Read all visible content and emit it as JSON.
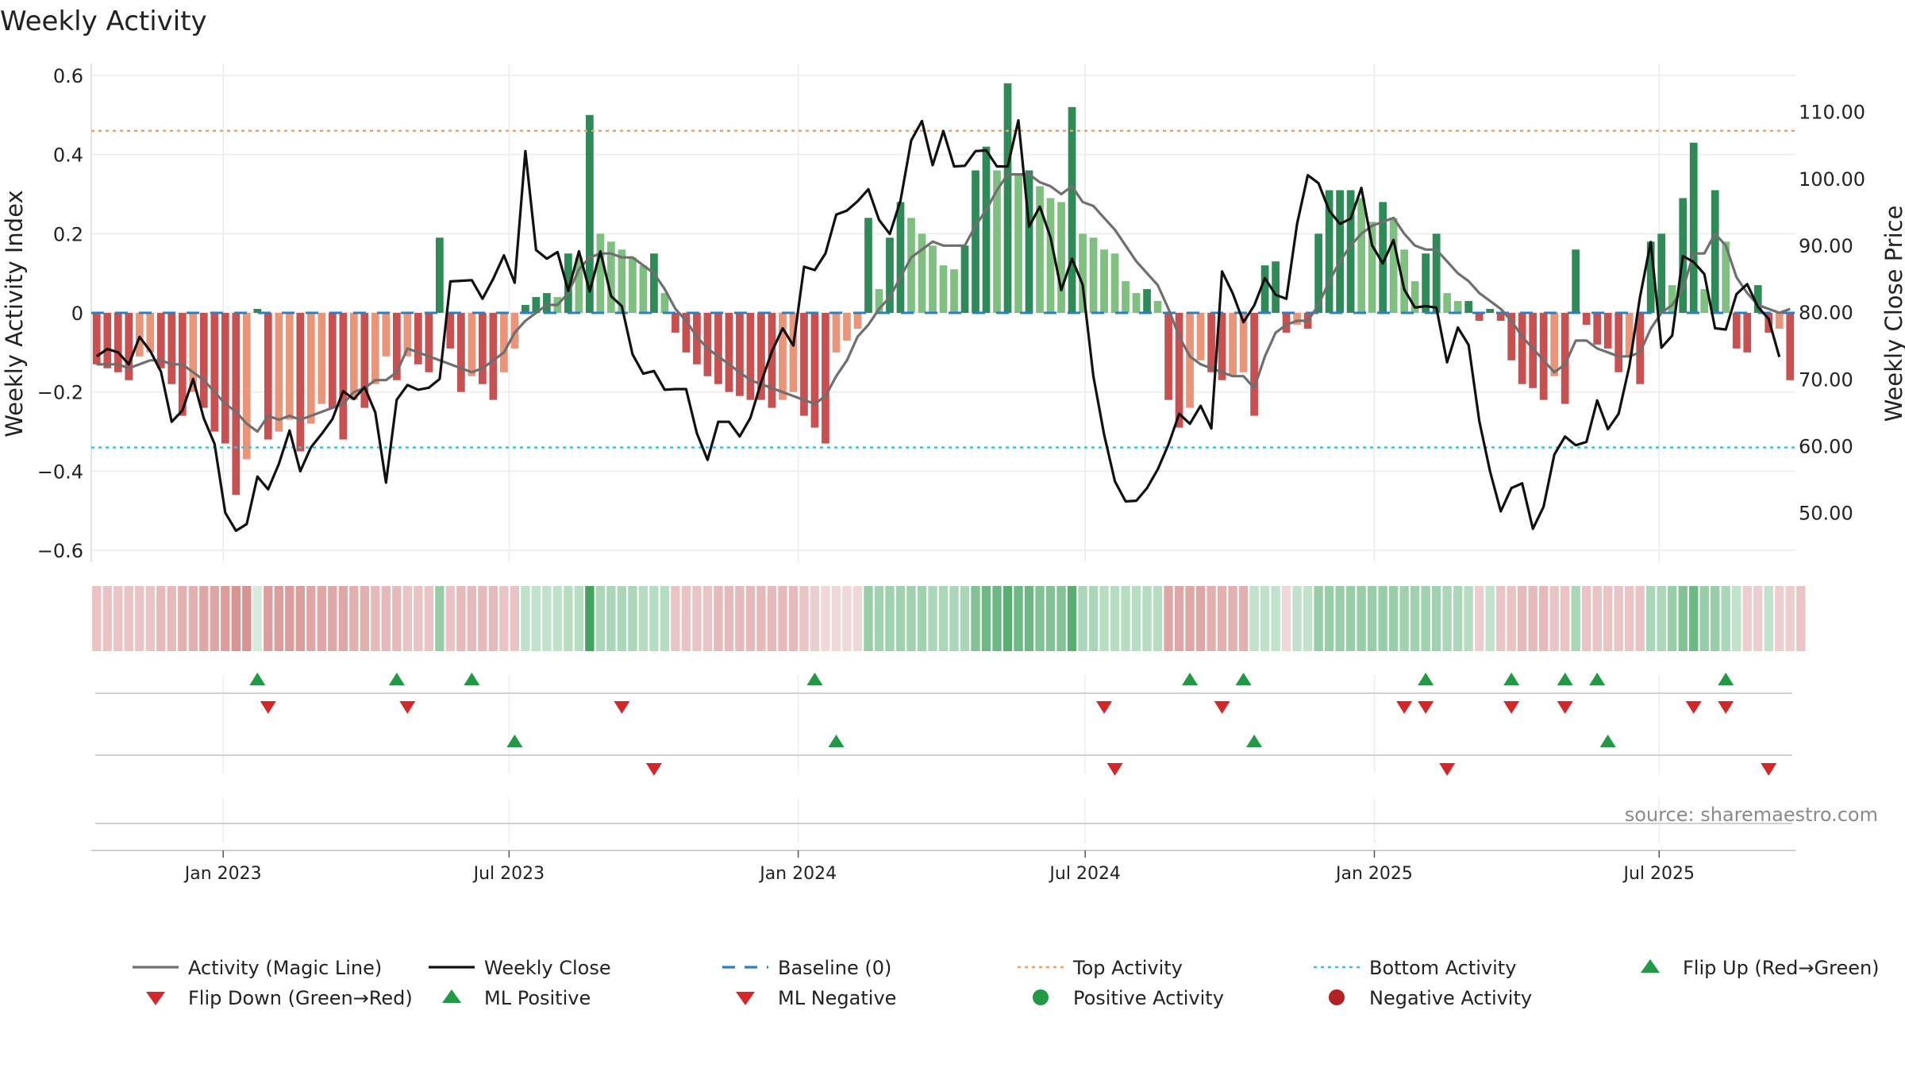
{
  "chart_data": {
    "type": "bar",
    "title": "Weekly Activity",
    "ylabel": "Weekly Activity Index",
    "y2label": "Weekly Close Price",
    "source": "source: sharemaestro.com",
    "ylim": [
      -0.63,
      0.63
    ],
    "y2lim": [
      42.6,
      117.2
    ],
    "yticks": [
      -0.6,
      -0.4,
      -0.2,
      0,
      0.2,
      0.4,
      0.6
    ],
    "ytick_labels": [
      "−0.6",
      "−0.4",
      "−0.2",
      "0",
      "0.2",
      "0.4",
      "0.6"
    ],
    "y2ticks": [
      50,
      60,
      70,
      80,
      90,
      100,
      110
    ],
    "y2tick_labels": [
      "50.00",
      "60.00",
      "70.00",
      "80.00",
      "90.00",
      "100.00",
      "110.00"
    ],
    "x_start": "2022-10-10",
    "x_weeks": 155,
    "xticks": [
      {
        "week": 12,
        "label": "Jan 2023"
      },
      {
        "week": 38,
        "label": "Jul 2023"
      },
      {
        "week": 64.3,
        "label": "Jan 2024"
      },
      {
        "week": 90.4,
        "label": "Jul 2024"
      },
      {
        "week": 116.7,
        "label": "Jan 2025"
      },
      {
        "week": 142.6,
        "label": "Jul 2025"
      }
    ],
    "top_activity": 0.46,
    "bottom_activity": -0.34,
    "baseline": 0,
    "activity": [
      -0.13,
      -0.14,
      -0.15,
      -0.17,
      -0.11,
      -0.1,
      -0.14,
      -0.18,
      -0.26,
      -0.2,
      -0.24,
      -0.3,
      -0.33,
      -0.46,
      -0.37,
      0.01,
      -0.32,
      -0.3,
      -0.27,
      -0.35,
      -0.28,
      -0.23,
      -0.24,
      -0.32,
      -0.22,
      -0.24,
      -0.18,
      -0.11,
      -0.17,
      -0.11,
      -0.13,
      -0.15,
      0.19,
      -0.09,
      -0.2,
      -0.16,
      -0.18,
      -0.22,
      -0.15,
      -0.09,
      0.02,
      0.04,
      0.05,
      0.04,
      0.15,
      0.14,
      0.5,
      0.2,
      0.18,
      0.16,
      0.14,
      0.12,
      0.15,
      0.05,
      -0.05,
      -0.1,
      -0.13,
      -0.16,
      -0.18,
      -0.2,
      -0.21,
      -0.22,
      -0.22,
      -0.24,
      -0.22,
      -0.2,
      -0.26,
      -0.29,
      -0.33,
      -0.1,
      -0.07,
      -0.04,
      0.24,
      0.06,
      0.19,
      0.28,
      0.24,
      0.2,
      0.17,
      0.12,
      0.11,
      0.17,
      0.36,
      0.42,
      0.36,
      0.58,
      0.35,
      0.36,
      0.32,
      0.29,
      0.28,
      0.52,
      0.2,
      0.19,
      0.16,
      0.15,
      0.08,
      0.05,
      0.06,
      0.03,
      -0.22,
      -0.29,
      -0.24,
      -0.12,
      -0.15,
      -0.17,
      -0.16,
      -0.15,
      -0.26,
      0.12,
      0.13,
      -0.05,
      -0.03,
      -0.04,
      0.2,
      0.31,
      0.31,
      0.31,
      0.29,
      0.23,
      0.28,
      0.24,
      0.16,
      0.08,
      0.15,
      0.2,
      0.05,
      0.03,
      0.03,
      -0.02,
      0.01,
      -0.02,
      -0.12,
      -0.18,
      -0.19,
      -0.22,
      -0.16,
      -0.23,
      0.16,
      -0.03,
      -0.08,
      -0.09,
      -0.15,
      -0.11,
      -0.18,
      0.18,
      0.2,
      0.07,
      0.29,
      0.43,
      0.06,
      0.31,
      0.18,
      -0.09,
      -0.1,
      0.07,
      -0.05,
      -0.04,
      -0.17
    ],
    "magic_line": [
      -0.13,
      -0.13,
      -0.13,
      -0.14,
      -0.13,
      -0.12,
      -0.12,
      -0.13,
      -0.13,
      -0.15,
      -0.17,
      -0.2,
      -0.23,
      -0.25,
      -0.28,
      -0.3,
      -0.26,
      -0.27,
      -0.26,
      -0.27,
      -0.26,
      -0.25,
      -0.24,
      -0.23,
      -0.2,
      -0.19,
      -0.17,
      -0.17,
      -0.15,
      -0.09,
      -0.1,
      -0.11,
      -0.12,
      -0.13,
      -0.14,
      -0.15,
      -0.14,
      -0.12,
      -0.1,
      -0.05,
      -0.02,
      0.0,
      0.02,
      0.02,
      0.05,
      0.11,
      0.14,
      0.15,
      0.15,
      0.14,
      0.14,
      0.12,
      0.1,
      0.06,
      0.01,
      -0.02,
      -0.06,
      -0.09,
      -0.11,
      -0.13,
      -0.15,
      -0.17,
      -0.18,
      -0.19,
      -0.2,
      -0.21,
      -0.22,
      -0.23,
      -0.21,
      -0.16,
      -0.12,
      -0.06,
      -0.03,
      0.01,
      0.04,
      0.09,
      0.14,
      0.16,
      0.18,
      0.17,
      0.17,
      0.17,
      0.22,
      0.26,
      0.31,
      0.35,
      0.35,
      0.35,
      0.33,
      0.32,
      0.3,
      0.32,
      0.28,
      0.27,
      0.24,
      0.21,
      0.17,
      0.13,
      0.1,
      0.07,
      0.01,
      -0.06,
      -0.11,
      -0.13,
      -0.14,
      -0.15,
      -0.16,
      -0.16,
      -0.19,
      -0.11,
      -0.05,
      -0.03,
      -0.02,
      -0.02,
      0.02,
      0.08,
      0.13,
      0.17,
      0.2,
      0.22,
      0.23,
      0.24,
      0.2,
      0.17,
      0.16,
      0.16,
      0.13,
      0.1,
      0.08,
      0.05,
      0.03,
      0.01,
      -0.02,
      -0.06,
      -0.09,
      -0.12,
      -0.15,
      -0.13,
      -0.07,
      -0.07,
      -0.09,
      -0.1,
      -0.11,
      -0.11,
      -0.1,
      -0.04,
      0.0,
      0.02,
      0.06,
      0.15,
      0.15,
      0.2,
      0.17,
      0.09,
      0.05,
      0.02,
      0.01,
      0.0,
      0.01
    ],
    "weekly_close": [
      73.4,
      74.5,
      74.0,
      72.2,
      76.3,
      74.2,
      71.1,
      63.6,
      65.3,
      70.0,
      64.1,
      60.3,
      50.0,
      47.3,
      48.3,
      55.4,
      53.5,
      57.3,
      62.3,
      56.2,
      59.8,
      61.8,
      64.0,
      68.2,
      67.0,
      68.8,
      65.0,
      54.5,
      66.9,
      69.1,
      68.4,
      68.7,
      70.0,
      84.6,
      84.7,
      84.8,
      82.0,
      85.0,
      88.5,
      84.4,
      104.1,
      89.3,
      88.0,
      89.0,
      83.2,
      89.1,
      83.1,
      89.1,
      82.4,
      80.9,
      73.7,
      70.8,
      71.2,
      68.4,
      68.5,
      68.5,
      61.9,
      57.9,
      63.6,
      63.6,
      61.4,
      64.2,
      69.5,
      74.1,
      77.6,
      75.0,
      86.8,
      86.3,
      88.8,
      94.6,
      95.2,
      96.6,
      98.4,
      93.8,
      91.7,
      96.7,
      105.7,
      108.6,
      102.0,
      107.1,
      101.8,
      101.9,
      104.1,
      104.2,
      101.8,
      101.8,
      108.7,
      92.8,
      95.8,
      91.2,
      83.3,
      88.0,
      84.1,
      70.4,
      61.7,
      54.7,
      51.7,
      51.8,
      53.7,
      56.5,
      60.2,
      64.8,
      63.3,
      66.0,
      62.6,
      86.1,
      82.8,
      78.5,
      81.0,
      85.1,
      82.6,
      82.0,
      93.2,
      100.5,
      99.3,
      95.2,
      93.2,
      94.0,
      98.6,
      90.0,
      87.3,
      90.8,
      83.4,
      80.7,
      80.9,
      80.7,
      72.5,
      77.7,
      75.1,
      63.7,
      56.2,
      50.2,
      53.7,
      54.4,
      47.6,
      50.9,
      58.7,
      61.4,
      60.1,
      60.6,
      66.8,
      62.5,
      64.8,
      71.9,
      82.3,
      90.5,
      74.7,
      76.5,
      88.4,
      87.5,
      85.7,
      77.6,
      77.4,
      82.7,
      84.2,
      80.8,
      79.0,
      73.3
    ],
    "strip_intensity": [
      -0.3,
      -0.3,
      -0.3,
      -0.3,
      -0.3,
      -0.3,
      -0.35,
      -0.35,
      -0.4,
      -0.4,
      -0.45,
      -0.45,
      -0.5,
      -0.55,
      -0.55,
      0.2,
      -0.5,
      -0.5,
      -0.5,
      -0.5,
      -0.45,
      -0.45,
      -0.45,
      -0.45,
      -0.4,
      -0.4,
      -0.35,
      -0.35,
      -0.35,
      -0.3,
      -0.3,
      -0.3,
      0.5,
      -0.3,
      -0.35,
      -0.35,
      -0.35,
      -0.35,
      -0.3,
      -0.3,
      0.3,
      0.3,
      0.3,
      0.3,
      0.35,
      0.35,
      0.9,
      0.4,
      0.4,
      0.4,
      0.4,
      0.35,
      0.35,
      0.35,
      -0.3,
      -0.3,
      -0.3,
      -0.3,
      -0.35,
      -0.35,
      -0.35,
      -0.35,
      -0.35,
      -0.35,
      -0.35,
      -0.35,
      -0.3,
      -0.25,
      -0.2,
      -0.2,
      -0.2,
      -0.2,
      0.5,
      0.45,
      0.45,
      0.45,
      0.45,
      0.45,
      0.4,
      0.4,
      0.4,
      0.4,
      0.6,
      0.7,
      0.7,
      0.8,
      0.7,
      0.7,
      0.6,
      0.6,
      0.6,
      0.8,
      0.4,
      0.4,
      0.35,
      0.35,
      0.35,
      0.35,
      0.35,
      0.35,
      -0.45,
      -0.45,
      -0.45,
      -0.45,
      -0.4,
      -0.4,
      -0.4,
      -0.4,
      0.3,
      0.3,
      0.3,
      -0.2,
      0.3,
      0.3,
      0.5,
      0.5,
      0.5,
      0.5,
      0.5,
      0.5,
      0.5,
      0.5,
      0.45,
      0.45,
      0.45,
      0.45,
      0.4,
      0.4,
      0.35,
      -0.25,
      0.3,
      -0.3,
      -0.3,
      -0.35,
      -0.35,
      -0.35,
      -0.3,
      -0.3,
      0.4,
      -0.3,
      -0.3,
      -0.3,
      -0.3,
      -0.3,
      -0.3,
      0.4,
      0.4,
      0.5,
      0.6,
      0.7,
      0.5,
      0.5,
      0.4,
      0.3,
      -0.25,
      -0.25,
      0.3,
      -0.25,
      -0.25,
      -0.3
    ],
    "flip_up": [
      15,
      28,
      35,
      67,
      102,
      107,
      124,
      132,
      137,
      140,
      152
    ],
    "flip_down": [
      16,
      29,
      49,
      94,
      105,
      122,
      124,
      132,
      137,
      149,
      152
    ],
    "ml_positive": [
      39,
      69,
      108,
      141
    ],
    "ml_negative": [
      52,
      95,
      126,
      156
    ],
    "legend": [
      {
        "label": "Activity (Magic Line)",
        "kind": "line",
        "color": "#6f6f6f"
      },
      {
        "label": "Weekly Close",
        "kind": "line",
        "color": "#111111"
      },
      {
        "label": "Baseline (0)",
        "kind": "dashed",
        "color": "#2e7fbf"
      },
      {
        "label": "Top Activity",
        "kind": "dotted",
        "color": "#f0a060"
      },
      {
        "label": "Bottom Activity",
        "kind": "dotted",
        "color": "#3ec1d8"
      },
      {
        "label": "Flip Up (Red→Green)",
        "kind": "triangle-up",
        "color": "#229944"
      },
      {
        "label": "Flip Down (Green→Red)",
        "kind": "triangle-down",
        "color": "#d62728"
      },
      {
        "label": "ML Positive",
        "kind": "triangle-up",
        "color": "#229944"
      },
      {
        "label": "ML Negative",
        "kind": "triangle-down",
        "color": "#d62728"
      },
      {
        "label": "Positive Activity",
        "kind": "circle",
        "color": "#229944"
      },
      {
        "label": "Negative Activity",
        "kind": "circle",
        "color": "#b22222"
      }
    ],
    "colors": {
      "pos_dark": "#2e8b57",
      "pos_light": "#7fbf7f",
      "neg_dark": "#c85050",
      "neg_light": "#e8957a",
      "up": "#229944",
      "down": "#d62728",
      "top": "#f0a060",
      "bottom": "#3ec1d8",
      "baseline": "#2e7fbf",
      "magic": "#6f6f6f",
      "close": "#111111"
    }
  }
}
